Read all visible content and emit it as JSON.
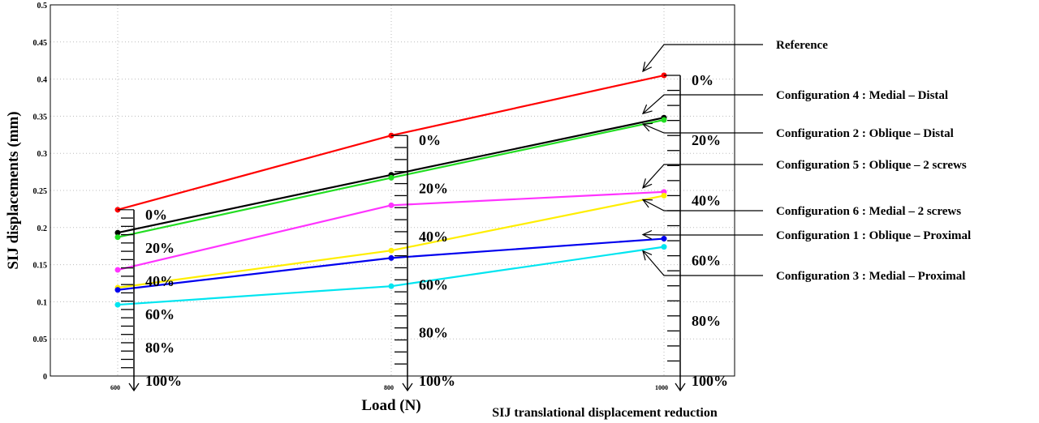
{
  "chart_data": {
    "type": "line",
    "xlabel": "Load (N)",
    "ylabel": "SIJ displacements (mm)",
    "secondary_label": "SIJ translational displacement reduction",
    "x": [
      600,
      800,
      1000
    ],
    "x_tick_labels": [
      "600",
      "800",
      "1000"
    ],
    "ylim": [
      0,
      0.5
    ],
    "y_ticks": [
      0,
      0.05,
      0.1,
      0.15,
      0.2,
      0.25,
      0.3,
      0.35,
      0.4,
      0.45,
      0.5
    ],
    "y_tick_labels": [
      "0",
      "0.05",
      "0.1",
      "0.15",
      "0.2",
      "0.25",
      "0.3",
      "0.35",
      "0.4",
      "0.45",
      "0.5"
    ],
    "grid": true,
    "series": [
      {
        "name": "Reference",
        "color": "#ff0000",
        "values": [
          0.224,
          0.324,
          0.405
        ]
      },
      {
        "name": "Configuration 4 : Medial – Distal",
        "color": "#000000",
        "values": [
          0.193,
          0.271,
          0.348
        ]
      },
      {
        "name": "Configuration 2 : Oblique – Distal",
        "color": "#22dd22",
        "values": [
          0.187,
          0.267,
          0.345
        ]
      },
      {
        "name": "Configuration 5 : Oblique – 2 screws",
        "color": "#ff33ff",
        "values": [
          0.143,
          0.23,
          0.248
        ]
      },
      {
        "name": "Configuration 6 : Medial – 2 screws",
        "color": "#ffee00",
        "values": [
          0.119,
          0.169,
          0.243
        ]
      },
      {
        "name": "Configuration 1 : Oblique – Proximal",
        "color": "#0000ee",
        "values": [
          0.116,
          0.159,
          0.185
        ]
      },
      {
        "name": "Configuration 3 : Medial – Proximal",
        "color": "#00e5f0",
        "values": [
          0.096,
          0.121,
          0.174
        ]
      }
    ],
    "reduction_scales": [
      {
        "load": 600,
        "labels": [
          "0%",
          "20%",
          "40%",
          "60%",
          "80%",
          "100%"
        ]
      },
      {
        "load": 800,
        "labels": [
          "0%",
          "20%",
          "40%",
          "60%",
          "80%",
          "100%"
        ]
      },
      {
        "load": 1000,
        "labels": [
          "0%",
          "20%",
          "40%",
          "60%",
          "80%",
          "100%"
        ]
      }
    ]
  }
}
